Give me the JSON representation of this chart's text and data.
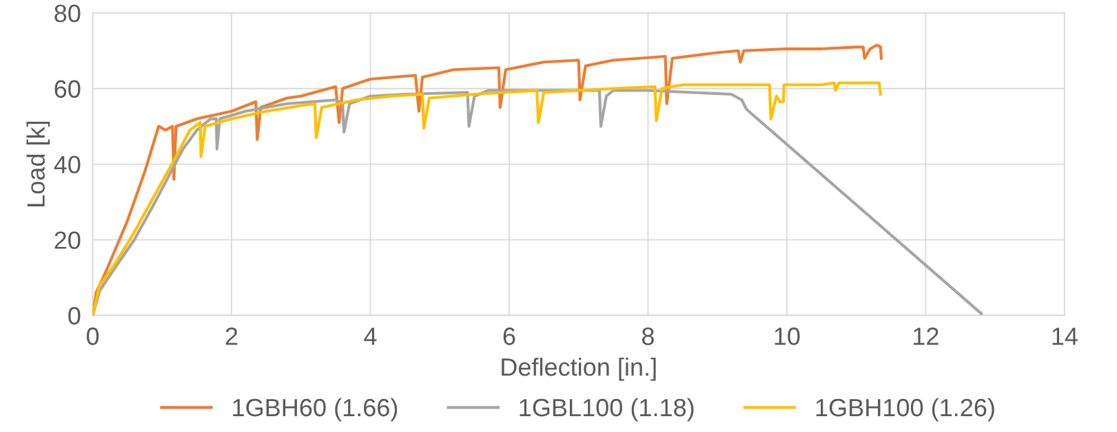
{
  "chart_data": {
    "type": "line",
    "xlabel": "Deflection [in.]",
    "ylabel": "Load [k]",
    "xlim": [
      0,
      14
    ],
    "ylim": [
      0,
      80
    ],
    "xticks": [
      0,
      2,
      4,
      6,
      8,
      10,
      12,
      14
    ],
    "yticks": [
      0,
      20,
      40,
      60,
      80
    ],
    "grid": true,
    "legend": "bottom",
    "marker": "none",
    "line_style": "solid",
    "series": [
      {
        "name": "1GBH60 (1.66)",
        "color": "#ed7d31",
        "x": [
          0,
          0.05,
          0.2,
          0.5,
          0.75,
          0.95,
          1.05,
          1.15,
          1.17,
          1.2,
          1.5,
          2.0,
          2.35,
          2.37,
          2.42,
          2.8,
          3.0,
          3.5,
          3.55,
          3.6,
          4.0,
          4.65,
          4.7,
          4.75,
          5.2,
          5.85,
          5.87,
          5.95,
          6.5,
          7.0,
          7.02,
          7.1,
          7.5,
          8.25,
          8.27,
          8.35,
          9.0,
          9.3,
          9.33,
          9.38,
          10,
          10.5,
          11.0,
          11.1,
          11.12,
          11.2,
          11.3,
          11.35,
          11.36
        ],
        "values": [
          0,
          6,
          12,
          25,
          38,
          50,
          49,
          50,
          36,
          50,
          52,
          54,
          56.5,
          46.5,
          55,
          57.5,
          58,
          60.5,
          51,
          60,
          62.5,
          63.5,
          54,
          63,
          65,
          65.5,
          55,
          65,
          67,
          67.5,
          57,
          66,
          67.5,
          68.5,
          56,
          68,
          69.5,
          70,
          67,
          70,
          70.5,
          70.5,
          71,
          71,
          68,
          70.5,
          71.5,
          71,
          68
        ]
      },
      {
        "name": "1GBL100 (1.18)",
        "color": "#a5a5a5",
        "x": [
          0,
          0.1,
          0.3,
          0.6,
          0.9,
          1.1,
          1.3,
          1.5,
          1.7,
          1.78,
          1.79,
          1.83,
          2.2,
          2.8,
          3.5,
          3.6,
          3.62,
          3.7,
          4.0,
          4.5,
          5.4,
          5.42,
          5.5,
          5.7,
          6.5,
          7.3,
          7.32,
          7.4,
          7.5,
          8.0,
          8.6,
          9.2,
          9.35,
          9.42,
          12.8
        ],
        "values": [
          0,
          6.5,
          12,
          20,
          30,
          37,
          44,
          49,
          52,
          52,
          44,
          52,
          54,
          56,
          57,
          56,
          48.5,
          56,
          58,
          58.5,
          59,
          50,
          58,
          59.5,
          59.5,
          59.5,
          50,
          58,
          59.5,
          59.5,
          59,
          58.5,
          57,
          54.5,
          0.5
        ]
      },
      {
        "name": "1GBH100 (1.26)",
        "color": "#ffc000",
        "x": [
          0,
          0.1,
          0.3,
          0.6,
          0.9,
          1.2,
          1.4,
          1.55,
          1.56,
          1.62,
          2.0,
          2.5,
          3.0,
          3.2,
          3.22,
          3.3,
          3.8,
          4.3,
          4.75,
          4.77,
          4.85,
          5.5,
          6.4,
          6.42,
          6.5,
          7.0,
          7.5,
          8.1,
          8.12,
          8.2,
          8.5,
          9.0,
          9.5,
          9.75,
          9.77,
          9.85,
          9.9,
          9.95,
          9.96,
          10.5,
          10.68,
          10.7,
          10.75,
          11.33,
          11.35
        ],
        "values": [
          0,
          8,
          13,
          22,
          32,
          42,
          49,
          51,
          42,
          50,
          52,
          54,
          55.5,
          56,
          47,
          55,
          57,
          58,
          58.5,
          49.5,
          57.5,
          58.5,
          59.5,
          51,
          59,
          59.5,
          60,
          60.5,
          51.5,
          60,
          61,
          61,
          61,
          61,
          52,
          58,
          56.5,
          56.5,
          61,
          61,
          61.5,
          59.5,
          61.5,
          61.5,
          58.5
        ]
      }
    ]
  }
}
